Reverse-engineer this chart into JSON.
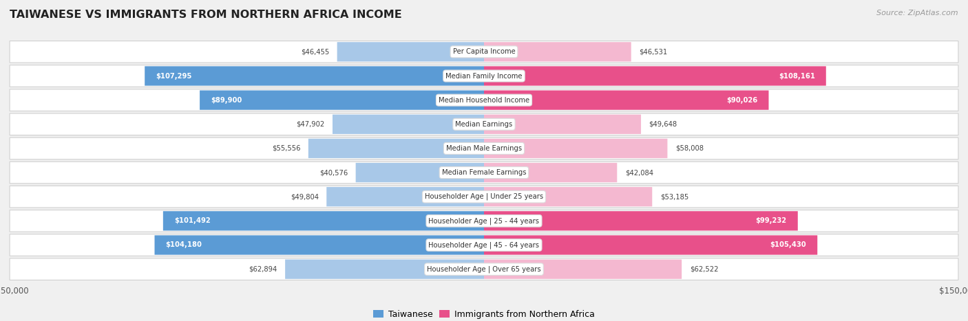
{
  "title": "TAIWANESE VS IMMIGRANTS FROM NORTHERN AFRICA INCOME",
  "source": "Source: ZipAtlas.com",
  "categories": [
    "Per Capita Income",
    "Median Family Income",
    "Median Household Income",
    "Median Earnings",
    "Median Male Earnings",
    "Median Female Earnings",
    "Householder Age | Under 25 years",
    "Householder Age | 25 - 44 years",
    "Householder Age | 45 - 64 years",
    "Householder Age | Over 65 years"
  ],
  "taiwanese_values": [
    46455,
    107295,
    89900,
    47902,
    55556,
    40576,
    49804,
    101492,
    104180,
    62894
  ],
  "immigrant_values": [
    46531,
    108161,
    90026,
    49648,
    58008,
    42084,
    53185,
    99232,
    105430,
    62522
  ],
  "taiwanese_labels": [
    "$46,455",
    "$107,295",
    "$89,900",
    "$47,902",
    "$55,556",
    "$40,576",
    "$49,804",
    "$101,492",
    "$104,180",
    "$62,894"
  ],
  "immigrant_labels": [
    "$46,531",
    "$108,161",
    "$90,026",
    "$49,648",
    "$58,008",
    "$42,084",
    "$53,185",
    "$99,232",
    "$105,430",
    "$62,522"
  ],
  "taiwanese_color_light": "#a8c8e8",
  "taiwanese_color_dark": "#5b9bd5",
  "immigrant_color_light": "#f4b8d0",
  "immigrant_color_dark": "#e8508a",
  "threshold": 75000,
  "max_value": 150000,
  "xlim": 150000,
  "background_color": "#f0f0f0",
  "row_bg_color": "#ffffff",
  "legend_taiwanese": "Taiwanese",
  "legend_immigrant": "Immigrants from Northern Africa"
}
